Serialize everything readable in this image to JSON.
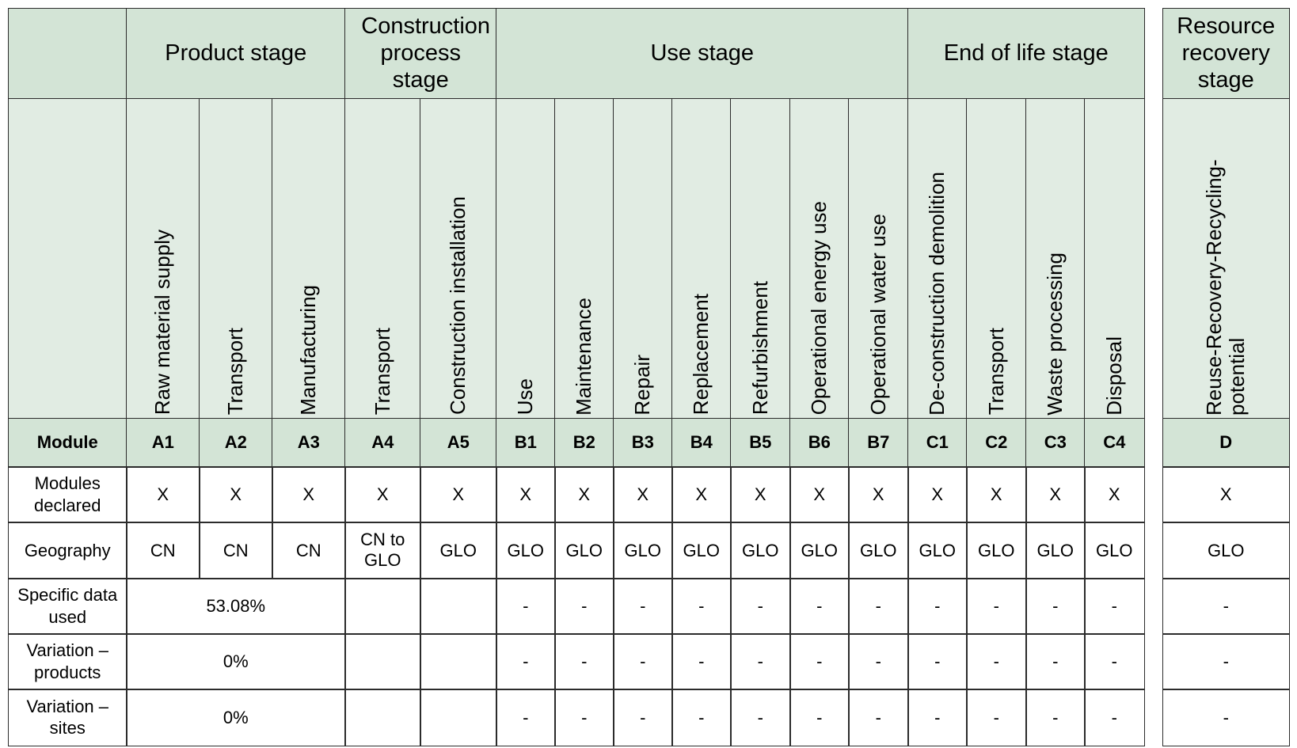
{
  "stages": [
    {
      "key": "product",
      "label": "Product stage"
    },
    {
      "key": "construction",
      "label": "Construction process stage"
    },
    {
      "key": "use",
      "label": "Use stage"
    },
    {
      "key": "eol",
      "label": "End of life stage"
    },
    {
      "key": "recovery",
      "label": "Resource recovery stage"
    }
  ],
  "columns": [
    {
      "stage": "product",
      "name": "Raw material supply",
      "module": "A1",
      "declared": "X",
      "geography": "CN"
    },
    {
      "stage": "product",
      "name": "Transport",
      "module": "A2",
      "declared": "X",
      "geography": "CN"
    },
    {
      "stage": "product",
      "name": "Manufacturing",
      "module": "A3",
      "declared": "X",
      "geography": "CN"
    },
    {
      "stage": "construction",
      "name": "Transport",
      "module": "A4",
      "declared": "X",
      "geography": "CN to GLO"
    },
    {
      "stage": "construction",
      "name": "Construction installation",
      "module": "A5",
      "declared": "X",
      "geography": "GLO"
    },
    {
      "stage": "use",
      "name": "Use",
      "module": "B1",
      "declared": "X",
      "geography": "GLO"
    },
    {
      "stage": "use",
      "name": "Maintenance",
      "module": "B2",
      "declared": "X",
      "geography": "GLO"
    },
    {
      "stage": "use",
      "name": "Repair",
      "module": "B3",
      "declared": "X",
      "geography": "GLO"
    },
    {
      "stage": "use",
      "name": "Replacement",
      "module": "B4",
      "declared": "X",
      "geography": "GLO"
    },
    {
      "stage": "use",
      "name": "Refurbishment",
      "module": "B5",
      "declared": "X",
      "geography": "GLO"
    },
    {
      "stage": "use",
      "name": "Operational energy use",
      "module": "B6",
      "declared": "X",
      "geography": "GLO"
    },
    {
      "stage": "use",
      "name": "Operational water use",
      "module": "B7",
      "declared": "X",
      "geography": "GLO"
    },
    {
      "stage": "eol",
      "name": "De-construction demolition",
      "module": "C1",
      "declared": "X",
      "geography": "GLO"
    },
    {
      "stage": "eol",
      "name": "Transport",
      "module": "C2",
      "declared": "X",
      "geography": "GLO"
    },
    {
      "stage": "eol",
      "name": "Waste processing",
      "module": "C3",
      "declared": "X",
      "geography": "GLO"
    },
    {
      "stage": "eol",
      "name": "Disposal",
      "module": "C4",
      "declared": "X",
      "geography": "GLO"
    },
    {
      "stage": "recovery",
      "name": "Reuse-Recovery-Recycling-potential",
      "module": "D",
      "declared": "X",
      "geography": "GLO"
    }
  ],
  "row_labels": {
    "module": "Module",
    "declared": "Modules declared",
    "geography": "Geography",
    "specific": "Specific data used",
    "var_products": "Variation – products",
    "var_sites": "Variation – sites"
  },
  "product_stage_values": {
    "specific": "53.08%",
    "var_products": "0%",
    "var_sites": "0%"
  },
  "dash": "-",
  "colors": {
    "header_bg": "#d3e4d6",
    "header_light_bg": "#e1ece3",
    "border": "#2b2b2b"
  }
}
